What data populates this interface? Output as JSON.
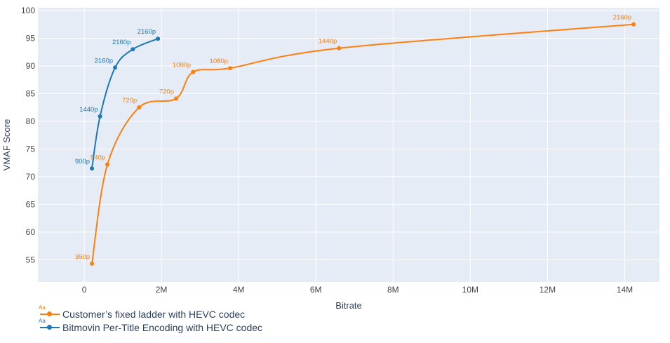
{
  "chart_data": {
    "type": "line",
    "title": "",
    "xlabel": "Bitrate",
    "ylabel": "VMAF Score",
    "xlim": [
      -1200000,
      14900000
    ],
    "ylim": [
      51,
      100.5
    ],
    "x_ticks": [
      {
        "value": 0,
        "label": "0"
      },
      {
        "value": 2000000,
        "label": "2M"
      },
      {
        "value": 4000000,
        "label": "4M"
      },
      {
        "value": 6000000,
        "label": "6M"
      },
      {
        "value": 8000000,
        "label": "8M"
      },
      {
        "value": 10000000,
        "label": "10M"
      },
      {
        "value": 12000000,
        "label": "12M"
      },
      {
        "value": 14000000,
        "label": "14M"
      }
    ],
    "y_ticks": [
      {
        "value": 55,
        "label": "55"
      },
      {
        "value": 60,
        "label": "60"
      },
      {
        "value": 65,
        "label": "65"
      },
      {
        "value": 70,
        "label": "70"
      },
      {
        "value": 75,
        "label": "75"
      },
      {
        "value": 80,
        "label": "80"
      },
      {
        "value": 85,
        "label": "85"
      },
      {
        "value": 90,
        "label": "90"
      },
      {
        "value": 95,
        "label": "95"
      },
      {
        "value": 100,
        "label": "100"
      }
    ],
    "grid": true,
    "plot_background": "#e5ecf6",
    "legend_position": "bottom-left",
    "series": [
      {
        "name": "Customer’s fixed ladder with HEVC codec",
        "color": "#ff7f0e",
        "points": [
          {
            "x": 200000,
            "y": 54.3,
            "label": "360p"
          },
          {
            "x": 600000,
            "y": 72.2,
            "label": "540p"
          },
          {
            "x": 1420000,
            "y": 82.5,
            "label": "720p"
          },
          {
            "x": 2380000,
            "y": 84.1,
            "label": "720p"
          },
          {
            "x": 2820000,
            "y": 88.9,
            "label": "1080p"
          },
          {
            "x": 3780000,
            "y": 89.6,
            "label": "1080p"
          },
          {
            "x": 6600000,
            "y": 93.2,
            "label": "1440p"
          },
          {
            "x": 14230000,
            "y": 97.5,
            "label": "2160p"
          }
        ]
      },
      {
        "name": "Bitmovin Per-Title Encoding with HEVC codec",
        "color": "#1f77b4",
        "points": [
          {
            "x": 200000,
            "y": 71.5,
            "label": "900p"
          },
          {
            "x": 410000,
            "y": 80.9,
            "label": "1440p"
          },
          {
            "x": 800000,
            "y": 89.7,
            "label": "2160p"
          },
          {
            "x": 1260000,
            "y": 93.0,
            "label": "2160p"
          },
          {
            "x": 1910000,
            "y": 94.9,
            "label": "2160p"
          }
        ]
      }
    ]
  }
}
